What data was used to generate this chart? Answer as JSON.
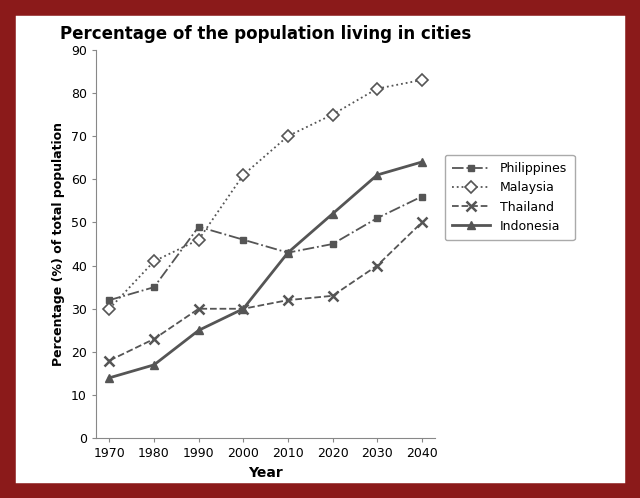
{
  "title": "Percentage of the population living in cities",
  "xlabel": "Year",
  "ylabel": "Percentage (%) of total population",
  "years": [
    1970,
    1980,
    1990,
    2000,
    2010,
    2020,
    2030,
    2040
  ],
  "philippines": [
    32,
    35,
    49,
    46,
    43,
    45,
    51,
    56
  ],
  "malaysia": [
    30,
    41,
    46,
    61,
    70,
    75,
    81,
    83
  ],
  "thailand": [
    18,
    23,
    30,
    30,
    32,
    33,
    40,
    50
  ],
  "indonesia": [
    14,
    17,
    25,
    30,
    43,
    52,
    61,
    64
  ],
  "ylim": [
    0,
    90
  ],
  "yticks": [
    0,
    10,
    20,
    30,
    40,
    50,
    60,
    70,
    80,
    90
  ],
  "line_color": "#555555",
  "background_color": "#ffffff",
  "border_color": "#8B1A1A",
  "fig_bg": "#ffffff"
}
